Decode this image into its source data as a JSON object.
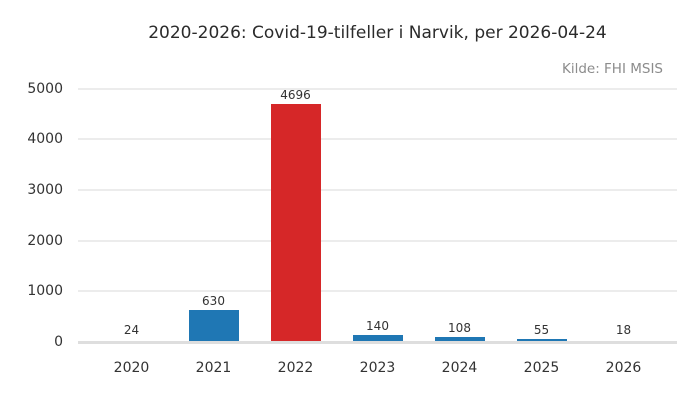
{
  "chart_data": {
    "type": "bar",
    "title": "2020-2026: Covid-19-tilfeller i Narvik, per 2026-04-24",
    "source": "Kilde: FHI MSIS",
    "categories": [
      "2020",
      "2021",
      "2022",
      "2023",
      "2024",
      "2025",
      "2026"
    ],
    "values": [
      24,
      630,
      4696,
      140,
      108,
      55,
      18
    ],
    "value_labels": [
      "24",
      "630",
      "4696",
      "140",
      "108",
      "55",
      "18"
    ],
    "bar_colors": [
      "#1f77b4",
      "#1f77b4",
      "#d62728",
      "#1f77b4",
      "#1f77b4",
      "#1f77b4",
      "#1f77b4"
    ],
    "highlight_category": "2022",
    "xlabel": "",
    "ylabel": "",
    "ylim": [
      0,
      5000
    ],
    "yticks": [
      0,
      1000,
      2000,
      3000,
      4000,
      5000
    ],
    "ytick_labels": [
      "0",
      "1000",
      "2000",
      "3000",
      "4000",
      "5000"
    ],
    "grid": true,
    "legend": "none",
    "colors": {
      "bar_default": "#1f77b4",
      "bar_highlight": "#d62728",
      "gridline": "#ececec",
      "axis_line": "#dedede",
      "title_text": "#2b2b2b",
      "tick_text": "#333333",
      "source_text": "#8c8c8c",
      "background": "#ffffff"
    }
  }
}
